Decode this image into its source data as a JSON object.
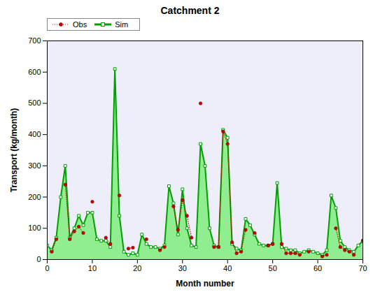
{
  "chart_data": {
    "type": "line",
    "title": "Catchment 2",
    "x_label": "Month number",
    "y_label": "Transport (kg/month)",
    "x": [
      0,
      1,
      2,
      3,
      4,
      5,
      6,
      7,
      8,
      9,
      10,
      11,
      12,
      13,
      14,
      15,
      16,
      17,
      18,
      19,
      20,
      21,
      22,
      23,
      24,
      25,
      26,
      27,
      28,
      29,
      30,
      31,
      32,
      33,
      34,
      35,
      36,
      37,
      38,
      39,
      40,
      41,
      42,
      43,
      44,
      45,
      46,
      47,
      48,
      49,
      50,
      51,
      52,
      53,
      54,
      55,
      56,
      57,
      58,
      59,
      60,
      61,
      62,
      63,
      64,
      65,
      66,
      67,
      68,
      69,
      70
    ],
    "series": [
      {
        "name": "Obs",
        "color": "#cc0000",
        "marker": "circle",
        "line_style": "dotted",
        "values": [
          null,
          25,
          65,
          null,
          240,
          65,
          90,
          105,
          85,
          null,
          185,
          null,
          null,
          70,
          50,
          null,
          205,
          null,
          35,
          38,
          null,
          null,
          65,
          null,
          null,
          30,
          40,
          null,
          170,
          95,
          190,
          140,
          70,
          null,
          500,
          null,
          null,
          40,
          40,
          410,
          370,
          55,
          20,
          25,
          95,
          null,
          85,
          null,
          null,
          45,
          50,
          null,
          50,
          20,
          20,
          20,
          15,
          null,
          25,
          null,
          null,
          10,
          15,
          null,
          100,
          40,
          30,
          25,
          15,
          null,
          60
        ]
      },
      {
        "name": "Sim",
        "color": "#00a000",
        "type": "area",
        "marker": "square",
        "line_style": "solid",
        "values": [
          45,
          30,
          70,
          200,
          300,
          70,
          100,
          140,
          110,
          150,
          150,
          65,
          60,
          60,
          40,
          610,
          140,
          25,
          15,
          20,
          15,
          80,
          50,
          40,
          40,
          35,
          45,
          235,
          180,
          80,
          225,
          100,
          45,
          40,
          370,
          300,
          100,
          45,
          40,
          415,
          390,
          50,
          35,
          30,
          130,
          110,
          80,
          50,
          45,
          45,
          50,
          245,
          40,
          35,
          30,
          30,
          20,
          25,
          30,
          25,
          20,
          15,
          30,
          205,
          165,
          60,
          40,
          30,
          25,
          45,
          60
        ]
      }
    ],
    "xlim": [
      0,
      70
    ],
    "xticks": [
      0,
      10,
      20,
      30,
      40,
      50,
      60,
      70
    ],
    "ylim": [
      0,
      700
    ],
    "yticks": [
      0,
      100,
      200,
      300,
      400,
      500,
      600,
      700
    ],
    "grid": false,
    "legend": "top-left"
  }
}
